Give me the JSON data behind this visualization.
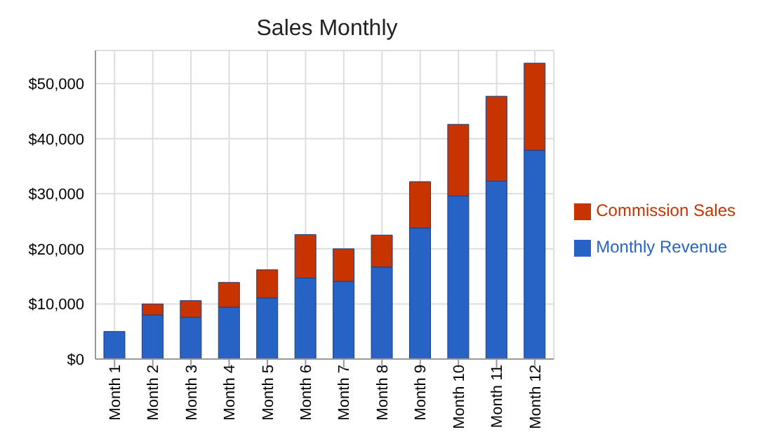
{
  "chart_data": {
    "type": "bar",
    "title": "Sales Monthly",
    "stacked": true,
    "categories": [
      "Month 1",
      "Month 2",
      "Month 3",
      "Month 4",
      "Month 5",
      "Month 6",
      "Month 7",
      "Month 8",
      "Month 9",
      "Month 10",
      "Month 11",
      "Month 12"
    ],
    "series": [
      {
        "name": "Monthly Revenue",
        "color": "#2763c4",
        "values": [
          5000,
          8000,
          7600,
          9400,
          11100,
          14700,
          14100,
          16700,
          23800,
          29600,
          32300,
          37900
        ]
      },
      {
        "name": "Commission Sales",
        "color": "#c83400",
        "values": [
          0,
          2000,
          3000,
          4500,
          5100,
          7900,
          5900,
          5800,
          8400,
          13000,
          15400,
          15800
        ]
      }
    ],
    "ylim": [
      0,
      56000
    ],
    "yticks": [
      {
        "value": 0,
        "label": "$0"
      },
      {
        "value": 10000,
        "label": "$10,000"
      },
      {
        "value": 20000,
        "label": "$20,000"
      },
      {
        "value": 30000,
        "label": "$30,000"
      },
      {
        "value": 40000,
        "label": "$40,000"
      },
      {
        "value": 50000,
        "label": "$50,000"
      }
    ],
    "grid": true,
    "legend": "right"
  }
}
